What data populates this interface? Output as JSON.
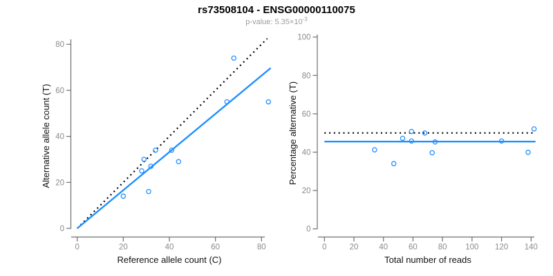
{
  "header": {
    "title": "rs73508104 - ENSG00000110075",
    "pvalue_prefix": "p-value: 5.35×10",
    "pvalue_exponent": "-3"
  },
  "colors": {
    "accent_blue": "#1E90FF",
    "line_black": "#000000",
    "axis_gray": "#6e6e6e",
    "tick_label_gray": "#8a8a8a",
    "subtitle_gray": "#9c9c9c",
    "background": "#ffffff"
  },
  "chart_data": [
    {
      "type": "scatter",
      "name": "allele-counts-scatter",
      "title": "",
      "xlabel": "Reference allele count (C)",
      "ylabel": "Alternative allele count (T)",
      "xlim": [
        0,
        84
      ],
      "ylim": [
        0,
        84
      ],
      "xticks": [
        0,
        20,
        40,
        60,
        80
      ],
      "yticks": [
        0,
        20,
        40,
        60,
        80
      ],
      "grid": false,
      "legend": null,
      "points": [
        [
          20,
          14
        ],
        [
          28,
          25
        ],
        [
          29,
          30
        ],
        [
          31,
          16
        ],
        [
          32,
          27
        ],
        [
          34,
          34
        ],
        [
          41,
          34
        ],
        [
          44,
          29
        ],
        [
          65,
          55
        ],
        [
          68,
          74
        ],
        [
          83,
          55
        ]
      ],
      "lines": [
        {
          "name": "identity-line",
          "style": "dotted",
          "color": "#000000",
          "x1": 0,
          "y1": 0,
          "x2": 82.5,
          "y2": 82.5
        },
        {
          "name": "regression-fit-line",
          "style": "solid",
          "color": "#1E90FF",
          "x1": 0,
          "y1": 0,
          "x2": 84,
          "y2": 69.7
        }
      ]
    },
    {
      "type": "scatter",
      "name": "percentage-vs-reads-scatter",
      "title": "",
      "xlabel": "Total number of reads",
      "ylabel": "Percentage alternative (T)",
      "xlim": [
        0,
        143
      ],
      "ylim": [
        0,
        100
      ],
      "xticks": [
        0,
        20,
        40,
        60,
        80,
        100,
        120,
        140
      ],
      "yticks": [
        0,
        20,
        40,
        60,
        80,
        100
      ],
      "grid": false,
      "legend": null,
      "points": [
        [
          34,
          41.2
        ],
        [
          47,
          34.0
        ],
        [
          53,
          47.2
        ],
        [
          59,
          50.8
        ],
        [
          59,
          45.8
        ],
        [
          68,
          50.0
        ],
        [
          73,
          39.7
        ],
        [
          75,
          45.3
        ],
        [
          120,
          45.8
        ],
        [
          138,
          39.9
        ],
        [
          142,
          52.1
        ]
      ],
      "lines": [
        {
          "name": "expected-50-percent-line",
          "style": "dotted",
          "color": "#000000",
          "x1": 0,
          "y1": 50,
          "x2": 143,
          "y2": 50
        },
        {
          "name": "mean-percentage-line",
          "style": "solid",
          "color": "#1E90FF",
          "x1": 0,
          "y1": 45.5,
          "x2": 143,
          "y2": 45.5
        }
      ]
    }
  ]
}
